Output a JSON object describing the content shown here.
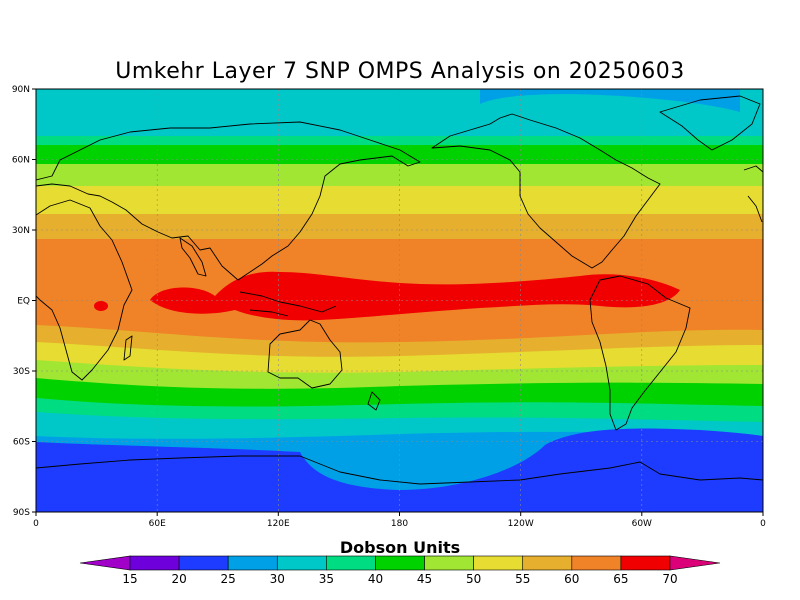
{
  "title": "Umkehr Layer 7 SNP OMPS Analysis on 20250603",
  "lat_labels": [
    "90N",
    "60N",
    "30N",
    "EQ",
    "30S",
    "60S",
    "90S"
  ],
  "lon_labels": [
    "0",
    "60E",
    "120E",
    "180",
    "120W",
    "60W",
    "0"
  ],
  "colorbar": {
    "title": "Dobson Units",
    "labels": [
      "15",
      "20",
      "25",
      "30",
      "35",
      "40",
      "45",
      "50",
      "55",
      "60",
      "65",
      "70"
    ],
    "colors": [
      "#a000c8",
      "#6e00dc",
      "#1e3cff",
      "#00a0e6",
      "#00c8c8",
      "#00dc82",
      "#00d200",
      "#a0e632",
      "#e6dc32",
      "#e6af2d",
      "#f08228",
      "#f00000",
      "#dc0078"
    ]
  },
  "field": {
    "description_bands": [
      {
        "lat_range": [
          "90N",
          "75N"
        ],
        "value_range": "30-35"
      },
      {
        "lat_range": [
          "75N",
          "60N"
        ],
        "value_range": "35-45"
      },
      {
        "lat_range": [
          "60N",
          "35N"
        ],
        "value_range": "45-60"
      },
      {
        "lat_range": [
          "30N",
          "15S"
        ],
        "value_range": "60-65"
      },
      {
        "lat_range": [
          "10N",
          "5S"
        ],
        "value_range": ">65"
      },
      {
        "lat_range": [
          "20S",
          "45S"
        ],
        "value_range": "45-60"
      },
      {
        "lat_range": [
          "45S",
          "60S"
        ],
        "value_range": "30-45"
      },
      {
        "lat_range": [
          "60S",
          "90S"
        ],
        "value_range": "20-30"
      }
    ]
  }
}
